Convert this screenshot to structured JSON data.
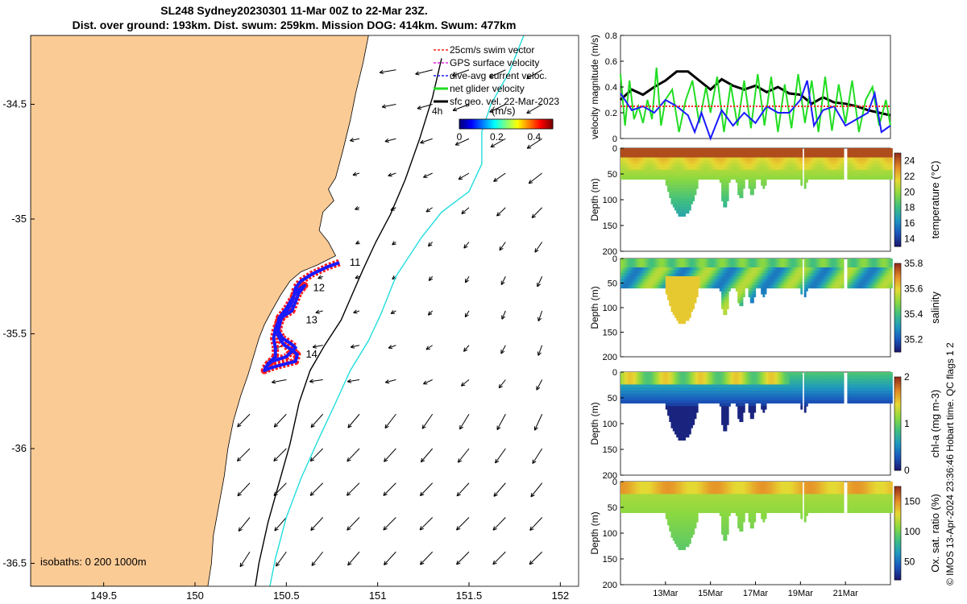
{
  "title_line1": "SL248 Sydney20230301 11-Mar 00Z to 22-Mar 23Z.",
  "title_line2": "Dist. over ground: 193km. Dist. swum: 259km. Mission DOG: 414km. Swum: 477km",
  "credit": "© IMOS 13-Apr-2024 23:36:46 Hobart time. QC flags 1  2",
  "colors": {
    "land": "#fbcb96",
    "track_dive": "#1a1aff",
    "track_surface": "#ff1a1a",
    "isobath_200": "#000000",
    "isobath_1000": "#22dddd",
    "net_glider": "#22dd22",
    "dive_avg": "#1a1aff",
    "sfc_geo": "#000000",
    "swim": "#ff2222"
  },
  "chart_data": [
    {
      "type": "map",
      "name": "track-map",
      "x_ticks": [
        149.5,
        150,
        150.5,
        151,
        151.5,
        152
      ],
      "y_ticks": [
        -34.5,
        -35,
        -35.5,
        -36,
        -36.5
      ],
      "xlim": [
        149.1,
        152.1
      ],
      "ylim": [
        -36.6,
        -34.2
      ],
      "legend": [
        {
          "label": "25cm/s swim vector",
          "color": "#ff2222",
          "dash": true
        },
        {
          "label": "GPS surface velocity",
          "color": "#dd22dd",
          "dash": true
        },
        {
          "label": "dive-avg current veloc.",
          "color": "#1a1aff",
          "dash": true
        },
        {
          "label": "net glider velocity",
          "color": "#22dd22",
          "dash": false
        },
        {
          "label": "sfc geo. vel. 22-Mar-2023",
          "color": "#000000",
          "dash": false
        }
      ],
      "legend_extra": "4h",
      "colorbar": {
        "label": "(m/s)",
        "ticks": [
          0,
          0.2,
          0.4
        ],
        "range": [
          0,
          0.5
        ]
      },
      "isobaths_label": "isobaths: 0   200  1000m",
      "day_labels": [
        {
          "text": "11",
          "lon": 150.82,
          "lat": -35.19
        },
        {
          "text": "12",
          "lon": 150.62,
          "lat": -35.3
        },
        {
          "text": "13",
          "lon": 150.58,
          "lat": -35.44
        },
        {
          "text": "14",
          "lon": 150.58,
          "lat": -35.59
        }
      ],
      "track": [
        [
          150.79,
          -35.19
        ],
        [
          150.72,
          -35.21
        ],
        [
          150.64,
          -35.24
        ],
        [
          150.58,
          -35.27
        ],
        [
          150.55,
          -35.3
        ],
        [
          150.54,
          -35.34
        ],
        [
          150.52,
          -35.38
        ],
        [
          150.49,
          -35.41
        ],
        [
          150.47,
          -35.44
        ],
        [
          150.46,
          -35.47
        ],
        [
          150.45,
          -35.5
        ],
        [
          150.47,
          -35.53
        ],
        [
          150.49,
          -35.55
        ],
        [
          150.53,
          -35.57
        ],
        [
          150.56,
          -35.59
        ],
        [
          150.55,
          -35.62
        ],
        [
          150.5,
          -35.63
        ],
        [
          150.45,
          -35.64
        ],
        [
          150.41,
          -35.65
        ],
        [
          150.38,
          -35.66
        ],
        [
          150.4,
          -35.63
        ],
        [
          150.44,
          -35.6
        ],
        [
          150.44,
          -35.56
        ],
        [
          150.43,
          -35.52
        ],
        [
          150.44,
          -35.48
        ],
        [
          150.46,
          -35.44
        ],
        [
          150.49,
          -35.42
        ],
        [
          150.53,
          -35.4
        ],
        [
          150.55,
          -35.36
        ],
        [
          150.57,
          -35.32
        ],
        [
          150.6,
          -35.29
        ],
        [
          150.56,
          -35.31
        ],
        [
          150.53,
          -35.35
        ],
        [
          150.5,
          -35.39
        ],
        [
          150.46,
          -35.43
        ],
        [
          150.45,
          -35.48
        ],
        [
          150.48,
          -35.52
        ],
        [
          150.52,
          -35.54
        ],
        [
          150.55,
          -35.56
        ],
        [
          150.5,
          -35.6
        ],
        [
          150.42,
          -35.62
        ],
        [
          150.38,
          -35.65
        ]
      ],
      "isobath_200": [
        [
          151.35,
          -34.3
        ],
        [
          151.3,
          -34.47
        ],
        [
          151.23,
          -34.65
        ],
        [
          151.15,
          -34.83
        ],
        [
          151.07,
          -34.98
        ],
        [
          150.99,
          -35.1
        ],
        [
          150.92,
          -35.22
        ],
        [
          150.86,
          -35.33
        ],
        [
          150.8,
          -35.44
        ],
        [
          150.71,
          -35.55
        ],
        [
          150.63,
          -35.66
        ],
        [
          150.57,
          -35.8
        ],
        [
          150.52,
          -35.98
        ],
        [
          150.46,
          -36.15
        ],
        [
          150.4,
          -36.32
        ],
        [
          150.35,
          -36.5
        ],
        [
          150.33,
          -36.6
        ]
      ],
      "isobath_1000": [
        [
          151.8,
          -34.2
        ],
        [
          151.72,
          -34.36
        ],
        [
          151.62,
          -34.5
        ],
        [
          151.57,
          -34.62
        ],
        [
          151.57,
          -34.76
        ],
        [
          151.5,
          -34.88
        ],
        [
          151.35,
          -34.97
        ],
        [
          151.24,
          -35.08
        ],
        [
          151.1,
          -35.25
        ],
        [
          151.02,
          -35.41
        ],
        [
          150.95,
          -35.53
        ],
        [
          150.85,
          -35.66
        ],
        [
          150.77,
          -35.8
        ],
        [
          150.67,
          -35.97
        ],
        [
          150.58,
          -36.13
        ],
        [
          150.5,
          -36.3
        ],
        [
          150.44,
          -36.48
        ],
        [
          150.41,
          -36.6
        ]
      ],
      "coastline": [
        [
          150.95,
          -34.2
        ],
        [
          150.92,
          -34.32
        ],
        [
          150.88,
          -34.45
        ],
        [
          150.85,
          -34.57
        ],
        [
          150.81,
          -34.7
        ],
        [
          150.77,
          -34.82
        ],
        [
          150.73,
          -34.87
        ],
        [
          150.76,
          -34.92
        ],
        [
          150.7,
          -34.97
        ],
        [
          150.68,
          -35.05
        ],
        [
          150.73,
          -35.1
        ],
        [
          150.77,
          -35.16
        ],
        [
          150.67,
          -35.2
        ],
        [
          150.58,
          -35.23
        ],
        [
          150.52,
          -35.27
        ],
        [
          150.47,
          -35.33
        ],
        [
          150.42,
          -35.4
        ],
        [
          150.38,
          -35.46
        ],
        [
          150.35,
          -35.52
        ],
        [
          150.32,
          -35.6
        ],
        [
          150.29,
          -35.68
        ],
        [
          150.25,
          -35.77
        ],
        [
          150.21,
          -35.88
        ],
        [
          150.18,
          -36.0
        ],
        [
          150.16,
          -36.12
        ],
        [
          150.13,
          -36.25
        ],
        [
          150.1,
          -36.38
        ],
        [
          150.09,
          -36.5
        ],
        [
          150.07,
          -36.6
        ]
      ]
    },
    {
      "type": "line",
      "name": "velocity-magnitude",
      "ylabel": "velocity magnitude (m/s)",
      "ylim": [
        0,
        0.8
      ],
      "y_ticks": [
        0,
        0.2,
        0.4,
        0.6,
        0.8
      ],
      "xlim": [
        11,
        23
      ],
      "series": [
        {
          "color": "#000000",
          "x": [
            11.0,
            11.5,
            12.0,
            12.5,
            13.0,
            13.5,
            14.0,
            14.5,
            15.0,
            15.5,
            16.0,
            16.5,
            17.0,
            17.5,
            18.0,
            18.5,
            19.0,
            19.5,
            20.0,
            20.5,
            21.0,
            21.5,
            22.0,
            22.5,
            23.0
          ],
          "y": [
            0.3,
            0.38,
            0.34,
            0.4,
            0.45,
            0.52,
            0.52,
            0.45,
            0.38,
            0.46,
            0.41,
            0.38,
            0.41,
            0.36,
            0.4,
            0.35,
            0.34,
            0.27,
            0.32,
            0.28,
            0.27,
            0.25,
            0.22,
            0.2,
            0.18
          ]
        },
        {
          "color": "#22dd22",
          "x": [
            11.0,
            11.2,
            11.4,
            11.6,
            11.8,
            12.0,
            12.2,
            12.4,
            12.6,
            12.8,
            13.0,
            13.3,
            13.6,
            13.9,
            14.2,
            14.5,
            14.8,
            15.0,
            15.3,
            15.6,
            15.9,
            16.2,
            16.5,
            16.8,
            17.1,
            17.4,
            17.7,
            18.0,
            18.3,
            18.6,
            18.9,
            19.2,
            19.5,
            19.8,
            20.1,
            20.4,
            20.7,
            21.0,
            21.3,
            21.6,
            21.9,
            22.2,
            22.5,
            22.8,
            23.0
          ],
          "y": [
            0.5,
            0.1,
            0.45,
            0.15,
            0.25,
            0.12,
            0.3,
            0.15,
            0.55,
            0.1,
            0.3,
            0.38,
            0.05,
            0.3,
            0.45,
            0.12,
            0.4,
            0.2,
            0.48,
            0.05,
            0.42,
            0.1,
            0.45,
            0.08,
            0.5,
            0.1,
            0.48,
            0.05,
            0.42,
            0.08,
            0.5,
            0.12,
            0.45,
            0.05,
            0.48,
            0.06,
            0.42,
            0.12,
            0.45,
            0.05,
            0.3,
            0.4,
            0.1,
            0.3,
            0.1
          ]
        },
        {
          "color": "#1a1aff",
          "x": [
            11.0,
            11.5,
            12.0,
            12.5,
            13.0,
            13.5,
            14.0,
            14.3,
            14.6,
            15.0,
            15.5,
            16.0,
            16.5,
            17.0,
            17.5,
            18.0,
            18.5,
            19.0,
            19.3,
            19.6,
            20.0,
            20.5,
            21.0,
            21.5,
            22.0,
            22.3,
            22.6,
            23.0
          ],
          "y": [
            0.35,
            0.22,
            0.25,
            0.2,
            0.3,
            0.25,
            0.18,
            0.05,
            0.2,
            0.0,
            0.22,
            0.1,
            0.2,
            0.12,
            0.25,
            0.2,
            0.2,
            0.3,
            0.45,
            0.1,
            0.22,
            0.25,
            0.1,
            0.15,
            0.2,
            0.35,
            0.05,
            0.1
          ]
        },
        {
          "color": "#ff2222",
          "dashed": true,
          "x": [
            11.0,
            23.0
          ],
          "y": [
            0.25,
            0.25
          ]
        }
      ]
    },
    {
      "type": "heatmap",
      "name": "temperature-section",
      "ylabel": "Depth (m)",
      "colorbar_label": "temperature (°C)",
      "colorbar_ticks": [
        14,
        16,
        18,
        20,
        22,
        24
      ],
      "crange": [
        13,
        25
      ],
      "ylim": [
        0,
        200
      ],
      "y_ticks": [
        0,
        50,
        100,
        150,
        200
      ]
    },
    {
      "type": "heatmap",
      "name": "salinity-section",
      "ylabel": "Depth (m)",
      "colorbar_label": "salinity",
      "colorbar_ticks": [
        35.2,
        35.4,
        35.6,
        35.8
      ],
      "crange": [
        35.1,
        35.8
      ],
      "ylim": [
        0,
        200
      ],
      "y_ticks": [
        0,
        50,
        100,
        150,
        200
      ]
    },
    {
      "type": "heatmap",
      "name": "chla-section",
      "ylabel": "Depth (m)",
      "colorbar_label": "chl-a (mg m-3)",
      "colorbar_ticks": [
        0,
        1,
        2
      ],
      "crange": [
        0,
        2
      ],
      "ylim": [
        0,
        200
      ],
      "y_ticks": [
        0,
        50,
        100,
        150,
        200
      ]
    },
    {
      "type": "heatmap",
      "name": "oxygen-section",
      "ylabel": "Depth (m)",
      "colorbar_label": "Ox. sat. ratio (%)",
      "colorbar_ticks": [
        50,
        100,
        150
      ],
      "crange": [
        20,
        175
      ],
      "ylim": [
        0,
        200
      ],
      "y_ticks": [
        0,
        50,
        100,
        150,
        200
      ],
      "x_tick_labels": [
        "13Mar",
        "15Mar",
        "17Mar",
        "19Mar",
        "21Mar"
      ],
      "x_ticks": [
        13,
        15,
        17,
        19,
        21
      ]
    }
  ]
}
